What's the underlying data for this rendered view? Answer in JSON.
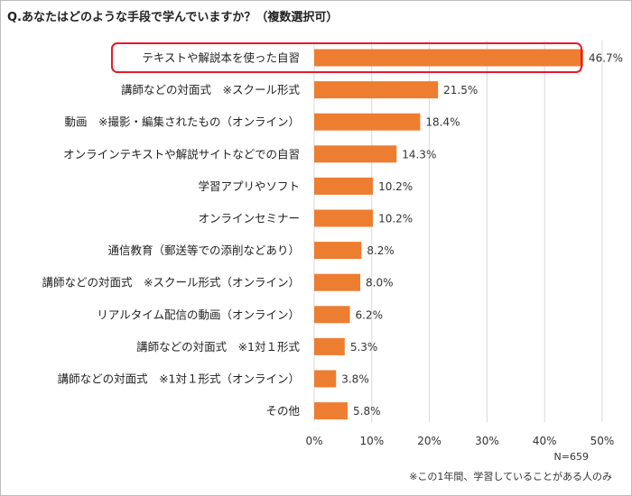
{
  "title": "Q.あなたはどのような手段で学んでいますか？（複数選択可）",
  "chart_data": {
    "type": "bar",
    "orientation": "horizontal",
    "categories": [
      "テキストや解説本を使った自習",
      "講師などの対面式　※スクール形式",
      "動画　※撮影・編集されたもの（オンライン）",
      "オンラインテキストや解説サイトなどでの自習",
      "学習アプリやソフト",
      "オンラインセミナー",
      "通信教育（郵送等での添削などあり）",
      "講師などの対面式　※スクール形式（オンライン）",
      "リアルタイム配信の動画（オンライン）",
      "講師などの対面式　※1対１形式",
      "講師などの対面式　※1対１形式（オンライン）",
      "その他"
    ],
    "values": [
      46.7,
      21.5,
      18.4,
      14.3,
      10.2,
      10.2,
      8.2,
      8.0,
      6.2,
      5.3,
      3.8,
      5.8
    ],
    "value_labels": [
      "46.7%",
      "21.5%",
      "18.4%",
      "14.3%",
      "10.2%",
      "10.2%",
      "8.2%",
      "8.0%",
      "6.2%",
      "5.3%",
      "3.8%",
      "5.8%"
    ],
    "xlim": [
      0,
      50
    ],
    "xticks": [
      0,
      10,
      20,
      30,
      40,
      50
    ],
    "xtick_labels": [
      "0%",
      "10%",
      "20%",
      "30%",
      "40%",
      "50%"
    ],
    "grid": true,
    "bar_color": "#ED7D31",
    "highlight_index": 0,
    "highlight_color": "#E8192C"
  },
  "footer": {
    "n": "N=659",
    "note": "※この1年間、学習していることがある人のみ"
  }
}
